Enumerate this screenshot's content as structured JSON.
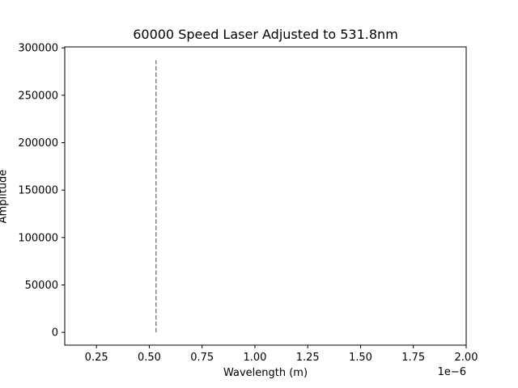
{
  "chart_data": {
    "type": "line",
    "title": "60000 Speed Laser Adjusted to 531.8nm",
    "xlabel": "Wavelength (m)",
    "ylabel": "Amplitude",
    "x_offset_label": "1e−6",
    "xlim": [
      0.1,
      2.0
    ],
    "ylim": [
      -13500,
      301000
    ],
    "x_ticks": [
      0.25,
      0.5,
      0.75,
      1.0,
      1.25,
      1.5,
      1.75,
      2.0
    ],
    "x_tick_labels": [
      "0.25",
      "0.50",
      "0.75",
      "1.00",
      "1.25",
      "1.50",
      "1.75",
      "2.00"
    ],
    "y_ticks": [
      0,
      50000,
      100000,
      150000,
      200000,
      250000,
      300000
    ],
    "y_tick_labels": [
      "0",
      "50000",
      "100000",
      "150000",
      "200000",
      "250000",
      "300000"
    ],
    "grid": false,
    "series": [
      {
        "x": [
          0.5318,
          0.5318
        ],
        "y": [
          0,
          287000
        ],
        "color": "#808080",
        "linestyle": "dashed"
      }
    ]
  }
}
